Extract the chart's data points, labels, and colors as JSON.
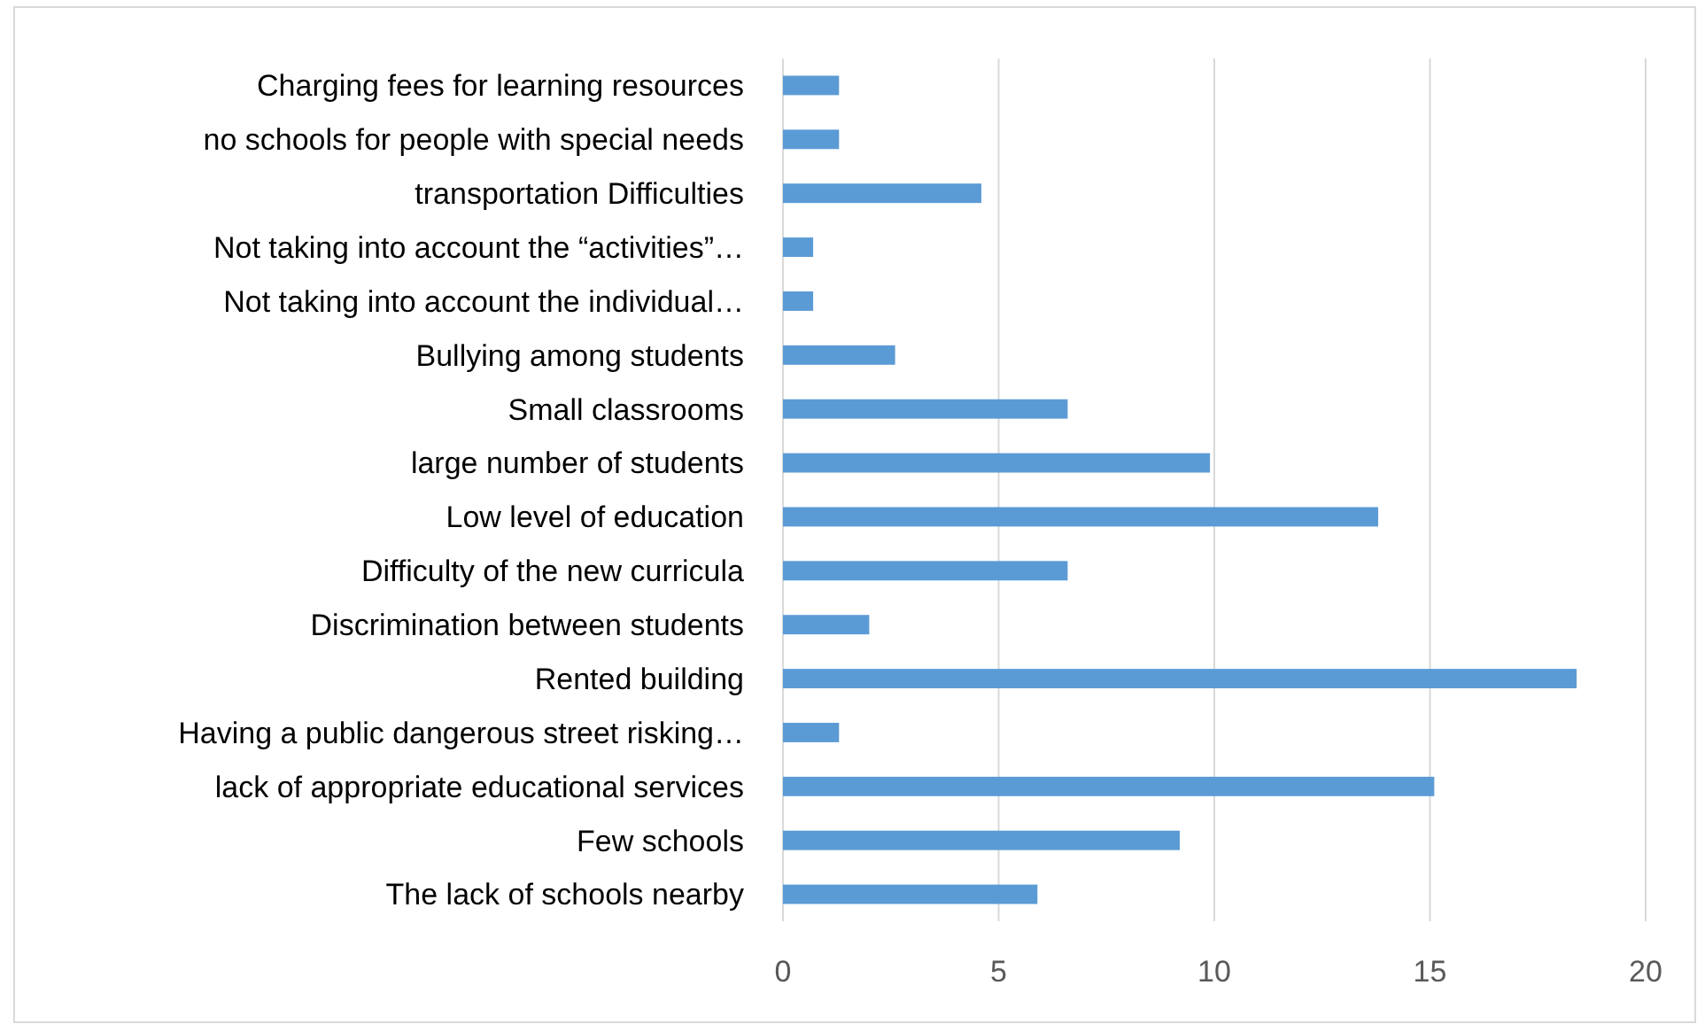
{
  "chart_data": {
    "type": "bar",
    "orientation": "horizontal",
    "categories": [
      "Charging fees for learning resources",
      "no schools for people with special needs",
      "transportation Difficulties",
      "Not taking into account the “activities”…",
      "Not taking into account the individual…",
      "Bullying among students",
      "Small classrooms",
      "large number of students",
      "Low level of education",
      "Difficulty of the new curricula",
      "Discrimination between students",
      "Rented building",
      "Having a public dangerous street risking…",
      "lack of appropriate educational services",
      "Few schools",
      "The lack of schools nearby"
    ],
    "values": [
      1.3,
      1.3,
      4.6,
      0.7,
      0.7,
      2.6,
      6.6,
      9.9,
      13.8,
      6.6,
      2.0,
      18.4,
      1.3,
      15.1,
      9.2,
      5.9
    ],
    "color": "#5b9bd5",
    "xlim": [
      0,
      20
    ],
    "xticks": [
      0,
      5,
      10,
      15,
      20
    ],
    "grid": "x"
  }
}
